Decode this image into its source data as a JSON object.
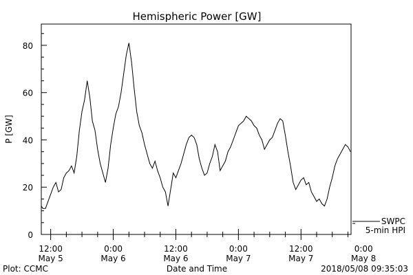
{
  "chart_data": {
    "type": "line",
    "title": "Hemispheric Power [GW]",
    "ylabel": "P [GW]",
    "xlabel": "Date and Time",
    "ylim": [
      0,
      89
    ],
    "y_ticks": [
      "0",
      "20",
      "40",
      "60",
      "80"
    ],
    "x_ticks": [
      {
        "time": "12:00",
        "date": "May 5"
      },
      {
        "time": "0:00",
        "date": "May 6"
      },
      {
        "time": "12:00",
        "date": "May 6"
      },
      {
        "time": "0:00",
        "date": "May 7"
      },
      {
        "time": "12:00",
        "date": "May 7"
      },
      {
        "time": "0:00",
        "date": "May 8"
      }
    ],
    "xlim_hours_from_may5_0000": [
      10.2,
      69.6
    ],
    "legend": {
      "label1": "SWPC",
      "label2": "5-min HPI",
      "placement": "right"
    },
    "series": [
      {
        "x": [
          10.2,
          10.5,
          11.0,
          11.5,
          12.0,
          12.5,
          13.0,
          13.5,
          14.0,
          14.5,
          15.0,
          15.5,
          16.0,
          16.5,
          17.0,
          17.5,
          18.0,
          18.5,
          19.0,
          19.5,
          20.0,
          20.5,
          21.0,
          21.5,
          22.0,
          22.5,
          23.0,
          23.5,
          24.0,
          24.5,
          25.0,
          25.5,
          26.0,
          26.5,
          27.0,
          27.5,
          28.0,
          28.5,
          29.0,
          29.5,
          30.0,
          30.5,
          31.0,
          31.5,
          32.0,
          32.5,
          33.0,
          33.5,
          34.0,
          34.5,
          35.0,
          35.5,
          36.0,
          36.5,
          37.0,
          37.5,
          38.0,
          38.5,
          39.0,
          39.5,
          40.0,
          40.5,
          41.0,
          41.5,
          42.0,
          42.5,
          43.0,
          43.5,
          44.0,
          44.5,
          45.0,
          45.5,
          46.0,
          46.5,
          47.0,
          47.5,
          48.0,
          48.5,
          49.0,
          49.5,
          50.0,
          50.5,
          51.0,
          51.5,
          52.0,
          52.5,
          53.0,
          53.5,
          54.0,
          54.5,
          55.0,
          55.5,
          56.0,
          56.5,
          57.0,
          57.5,
          58.0,
          58.5,
          59.0,
          59.5,
          60.0,
          60.5,
          61.0,
          61.5,
          62.0,
          62.5,
          63.0,
          63.5,
          64.0,
          64.5,
          65.0,
          65.5,
          66.0,
          66.5,
          67.0,
          67.5,
          68.0,
          68.5,
          69.0,
          69.5
        ],
        "y": [
          12,
          11,
          11,
          14,
          17,
          20,
          22,
          18,
          19,
          24,
          26,
          27,
          29,
          26,
          33,
          44,
          52,
          57,
          65,
          58,
          48,
          44,
          36,
          30,
          26,
          22,
          28,
          38,
          45,
          51,
          54,
          60,
          68,
          76,
          81,
          73,
          62,
          52,
          46,
          43,
          38,
          34,
          30,
          28,
          31,
          27,
          24,
          20,
          18,
          12,
          19,
          26,
          24,
          27,
          30,
          34,
          38,
          41,
          42,
          41,
          38,
          32,
          28,
          25,
          26,
          30,
          33,
          38,
          35,
          27,
          29,
          31,
          35,
          37,
          40,
          43,
          46,
          47,
          48,
          50,
          49,
          48,
          46,
          45,
          42,
          40,
          36,
          38,
          40,
          41,
          44,
          47,
          49,
          48,
          42,
          35,
          29,
          22,
          19,
          21,
          23,
          24,
          21,
          22,
          18,
          16,
          14,
          15,
          13,
          12,
          15,
          20,
          24,
          29,
          32,
          34,
          36,
          38,
          37,
          35
        ]
      }
    ]
  },
  "footer": {
    "left": "Plot: CCMC",
    "right": "2018/05/08 09:35:03"
  }
}
